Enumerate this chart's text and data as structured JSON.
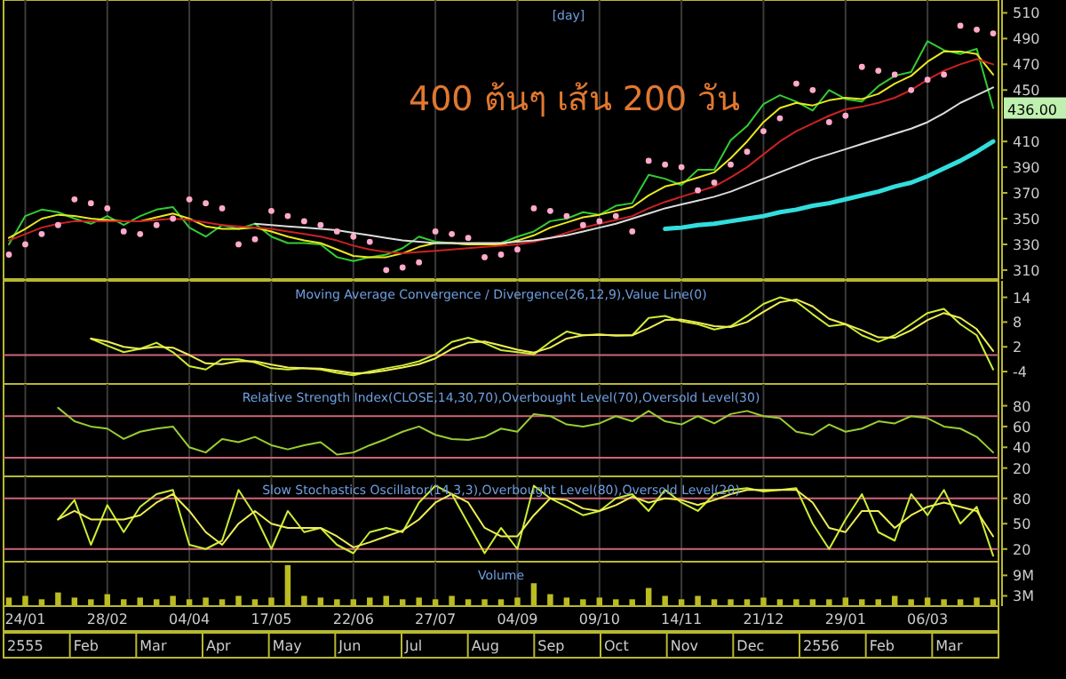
{
  "chart_data": [
    {
      "type": "line",
      "title": "[day]",
      "categories": [
        null,
        null,
        null,
        null,
        null,
        null,
        null,
        null,
        null,
        null,
        null,
        null,
        null,
        null,
        null,
        null,
        null,
        null,
        null,
        null,
        null,
        null,
        null,
        null,
        null,
        null,
        null,
        null,
        null,
        null,
        null,
        null,
        null,
        null,
        null,
        null,
        null,
        null,
        null,
        null,
        null,
        null,
        null,
        null,
        null,
        null,
        null,
        null,
        null,
        null,
        null,
        null,
        null,
        null,
        null,
        null,
        null,
        null,
        null,
        null,
        null
      ],
      "ylim": [
        303,
        520
      ],
      "yticks": [
        310,
        330,
        350,
        370,
        390,
        410,
        450,
        470,
        490,
        510
      ],
      "grid": "x",
      "tick_labels": "y",
      "series": [
        {
          "color": "#33cc33",
          "values": [
            330,
            352,
            357,
            355,
            350,
            346,
            352,
            345,
            352,
            357,
            359,
            343,
            336,
            345,
            342,
            346,
            336,
            331,
            331,
            330,
            320,
            317,
            320,
            322,
            327,
            336,
            332,
            331,
            330,
            330,
            331,
            336,
            340,
            348,
            350,
            355,
            353,
            360,
            362,
            384,
            381,
            376,
            388,
            388,
            411,
            422,
            439,
            446,
            441,
            434,
            450,
            443,
            441,
            453,
            461,
            464,
            488,
            481,
            478,
            482,
            436
          ]
        },
        {
          "color": "#e8e820",
          "values": [
            335,
            342,
            350,
            353,
            352,
            350,
            349,
            348,
            348,
            351,
            354,
            350,
            344,
            342,
            342,
            343,
            340,
            336,
            333,
            331,
            326,
            321,
            320,
            320,
            323,
            328,
            331,
            331,
            330,
            330,
            330,
            333,
            337,
            343,
            347,
            351,
            353,
            356,
            359,
            368,
            375,
            378,
            382,
            386,
            397,
            410,
            425,
            436,
            440,
            438,
            442,
            444,
            443,
            447,
            455,
            461,
            472,
            480,
            480,
            478,
            462
          ]
        },
        {
          "color": "#cc2222",
          "values": [
            333,
            338,
            343,
            346,
            348,
            348,
            348,
            348,
            348,
            349,
            350,
            349,
            347,
            345,
            344,
            343,
            342,
            340,
            338,
            336,
            333,
            329,
            326,
            324,
            323,
            324,
            325,
            326,
            327,
            328,
            329,
            330,
            332,
            335,
            339,
            343,
            346,
            349,
            352,
            358,
            363,
            367,
            371,
            375,
            382,
            390,
            400,
            410,
            418,
            424,
            430,
            435,
            437,
            440,
            444,
            450,
            458,
            465,
            470,
            474,
            470
          ]
        },
        {
          "color": "#dddddd",
          "values": [
            null,
            null,
            null,
            null,
            null,
            null,
            null,
            null,
            null,
            null,
            null,
            null,
            null,
            null,
            null,
            346,
            345,
            344,
            343,
            342,
            341,
            339,
            337,
            335,
            333,
            332,
            331,
            331,
            331,
            331,
            331,
            332,
            333,
            335,
            337,
            340,
            343,
            346,
            350,
            354,
            358,
            361,
            364,
            367,
            371,
            376,
            381,
            386,
            391,
            396,
            400,
            404,
            408,
            412,
            416,
            420,
            425,
            432,
            440,
            446,
            452
          ]
        },
        {
          "color": "#33dddd",
          "values": [
            null,
            null,
            null,
            null,
            null,
            null,
            null,
            null,
            null,
            null,
            null,
            null,
            null,
            null,
            null,
            null,
            null,
            null,
            null,
            null,
            null,
            null,
            null,
            null,
            null,
            null,
            null,
            null,
            null,
            null,
            null,
            null,
            null,
            null,
            null,
            null,
            null,
            null,
            null,
            null,
            342,
            343,
            345,
            346,
            348,
            350,
            352,
            355,
            357,
            360,
            362,
            365,
            368,
            371,
            375,
            378,
            383,
            389,
            395,
            402,
            410
          ]
        },
        {
          "type": "scatter",
          "marker": "circle",
          "color": "#ffaacc",
          "values": [
            322,
            330,
            338,
            345,
            365,
            362,
            358,
            340,
            338,
            345,
            350,
            365,
            362,
            358,
            330,
            334,
            356,
            352,
            348,
            345,
            340,
            336,
            332,
            310,
            312,
            316,
            340,
            338,
            335,
            320,
            322,
            326,
            358,
            356,
            352,
            345,
            348,
            352,
            340,
            395,
            392,
            390,
            372,
            378,
            392,
            402,
            418,
            428,
            455,
            450,
            425,
            430,
            468,
            465,
            462,
            450,
            458,
            462,
            500,
            497,
            494
          ]
        }
      ],
      "annotations": [
        "400 ต้นๆ เส้น 200 วัน",
        {
          "text": "436.00",
          "y": 436
        }
      ]
    },
    {
      "type": "line",
      "title": "Moving Average Convergence / Divergence(26,12,9),Value Line(0)",
      "categories": [
        null,
        null,
        null,
        null,
        null,
        null,
        null,
        null,
        null,
        null,
        null,
        null,
        null,
        null,
        null,
        null,
        null,
        null,
        null,
        null,
        null,
        null,
        null,
        null,
        null,
        null,
        null,
        null,
        null,
        null,
        null,
        null,
        null,
        null,
        null,
        null,
        null,
        null,
        null,
        null,
        null,
        null,
        null,
        null,
        null,
        null,
        null,
        null,
        null,
        null,
        null,
        null,
        null,
        null,
        null,
        null,
        null,
        null,
        null,
        null,
        null
      ],
      "ylim": [
        -7,
        18
      ],
      "yticks": [
        -4,
        2,
        8,
        14
      ],
      "grid": "x",
      "tick_labels": "y",
      "ref_lines": [
        {
          "axis": "y",
          "value": 0,
          "color": "#cc6677"
        }
      ],
      "series": [
        {
          "color": "#ccee33",
          "values": [
            null,
            null,
            null,
            null,
            null,
            4,
            2.3,
            0.7,
            1.5,
            3,
            0.7,
            -2.7,
            -3.5,
            -1,
            -1,
            -1.8,
            -3.2,
            -3.5,
            -3.2,
            -3.5,
            -4.3,
            -4.9,
            -4,
            -3.2,
            -2.5,
            -1.5,
            0.2,
            3.2,
            4.2,
            2.9,
            1.2,
            0.7,
            0.2,
            3.2,
            5.7,
            4.8,
            5,
            4.7,
            4.8,
            9,
            9.5,
            8.2,
            7.5,
            6.2,
            7,
            9.5,
            12.4,
            14,
            13,
            9.9,
            7,
            7.5,
            4.8,
            3.2,
            4.8,
            7.5,
            10.2,
            11.2,
            7.5,
            4.8,
            -3.5
          ]
        },
        {
          "color": "#eeee55",
          "values": [
            null,
            null,
            null,
            null,
            null,
            4,
            3.3,
            2,
            1.5,
            2,
            1.8,
            0,
            -2,
            -2.2,
            -1.5,
            -1.5,
            -2.3,
            -3,
            -3.2,
            -3.3,
            -3.8,
            -4.4,
            -4.3,
            -3.7,
            -3,
            -2.2,
            -0.8,
            1.5,
            3,
            3.3,
            2.3,
            1.3,
            0.6,
            1.8,
            4,
            4.8,
            4.9,
            4.8,
            4.8,
            6.5,
            8.5,
            8.6,
            7.9,
            7,
            6.8,
            8,
            10.5,
            12.8,
            13.5,
            11.8,
            8.8,
            7.5,
            6,
            4.3,
            4.2,
            6,
            8.5,
            10.2,
            9,
            6.3,
            1
          ]
        }
      ]
    },
    {
      "type": "line",
      "title": "Relative Strength Index(CLOSE,14,30,70),Overbought Level(70),Oversold Level(30)",
      "categories": [
        null,
        null,
        null,
        null,
        null,
        null,
        null,
        null,
        null,
        null,
        null,
        null,
        null,
        null,
        null,
        null,
        null,
        null,
        null,
        null,
        null,
        null,
        null,
        null,
        null,
        null,
        null,
        null,
        null,
        null,
        null,
        null,
        null,
        null,
        null,
        null,
        null,
        null,
        null,
        null,
        null,
        null,
        null,
        null,
        null,
        null,
        null,
        null,
        null,
        null,
        null,
        null,
        null,
        null,
        null,
        null,
        null,
        null,
        null,
        null,
        null
      ],
      "ylim": [
        12,
        101
      ],
      "yticks": [
        20,
        40,
        60,
        80
      ],
      "grid": "x",
      "tick_labels": "y",
      "ref_lines": [
        {
          "axis": "y",
          "value": 70,
          "color": "#cc6677"
        },
        {
          "axis": "y",
          "value": 30,
          "color": "#cc6677"
        }
      ],
      "series": [
        {
          "color": "#99cc33",
          "values": [
            null,
            null,
            null,
            78,
            65,
            60,
            58,
            48,
            55,
            58,
            60,
            40,
            35,
            48,
            45,
            50,
            42,
            38,
            42,
            45,
            33,
            35,
            42,
            48,
            55,
            60,
            52,
            48,
            47,
            50,
            58,
            55,
            72,
            70,
            62,
            60,
            63,
            70,
            65,
            75,
            65,
            62,
            70,
            63,
            72,
            75,
            70,
            68,
            55,
            52,
            62,
            55,
            58,
            65,
            63,
            70,
            68,
            60,
            58,
            50,
            35
          ]
        }
      ]
    },
    {
      "type": "line",
      "title": "Slow Stochastics Oscillator(14,3,3),Overbought Level(80),Oversold Level(20)",
      "categories": [
        null,
        null,
        null,
        null,
        null,
        null,
        null,
        null,
        null,
        null,
        null,
        null,
        null,
        null,
        null,
        null,
        null,
        null,
        null,
        null,
        null,
        null,
        null,
        null,
        null,
        null,
        null,
        null,
        null,
        null,
        null,
        null,
        null,
        null,
        null,
        null,
        null,
        null,
        null,
        null,
        null,
        null,
        null,
        null,
        null,
        null,
        null,
        null,
        null,
        null,
        null,
        null,
        null,
        null,
        null,
        null,
        null,
        null,
        null,
        null,
        null
      ],
      "ylim": [
        5,
        106
      ],
      "yticks": [
        20,
        50,
        80
      ],
      "grid": "x",
      "tick_labels": "y",
      "ref_lines": [
        {
          "axis": "y",
          "value": 80,
          "color": "#cc6677"
        },
        {
          "axis": "y",
          "value": 20,
          "color": "#cc6677"
        }
      ],
      "series": [
        {
          "color": "#ccee33",
          "values": [
            null,
            null,
            null,
            55,
            78,
            25,
            72,
            40,
            70,
            85,
            90,
            25,
            20,
            30,
            90,
            60,
            20,
            65,
            40,
            45,
            25,
            15,
            40,
            45,
            40,
            75,
            95,
            85,
            50,
            15,
            45,
            20,
            95,
            80,
            70,
            60,
            65,
            80,
            85,
            65,
            90,
            75,
            65,
            85,
            90,
            92,
            88,
            90,
            92,
            50,
            20,
            55,
            85,
            40,
            30,
            85,
            60,
            90,
            50,
            70,
            12
          ]
        },
        {
          "color": "#eeee55",
          "values": [
            null,
            null,
            null,
            55,
            65,
            55,
            55,
            55,
            60,
            75,
            85,
            65,
            40,
            25,
            50,
            65,
            50,
            45,
            45,
            45,
            35,
            22,
            28,
            35,
            42,
            55,
            75,
            85,
            75,
            45,
            35,
            35,
            60,
            80,
            78,
            68,
            65,
            72,
            82,
            75,
            80,
            78,
            72,
            78,
            85,
            90,
            90,
            90,
            90,
            75,
            45,
            40,
            65,
            65,
            45,
            60,
            70,
            75,
            70,
            65,
            35
          ]
        }
      ]
    },
    {
      "type": "bar",
      "title": "Volume",
      "categories": [
        null,
        "24/01",
        null,
        null,
        null,
        null,
        "28/02",
        null,
        null,
        null,
        null,
        "04/04",
        null,
        null,
        null,
        null,
        "17/05",
        null,
        null,
        null,
        null,
        "22/06",
        null,
        null,
        null,
        null,
        "27/07",
        null,
        null,
        null,
        null,
        "04/09",
        null,
        null,
        null,
        null,
        "09/10",
        null,
        null,
        null,
        null,
        "14/11",
        null,
        null,
        null,
        null,
        "21/12",
        null,
        null,
        null,
        null,
        "29/01",
        null,
        null,
        null,
        null,
        "06/03",
        null,
        null,
        null,
        null
      ],
      "ylim": [
        0,
        13
      ],
      "yticks": [
        {
          "value": 3,
          "label": "3M"
        },
        {
          "value": 9,
          "label": "9M"
        }
      ],
      "grid": "x",
      "series": [
        {
          "color": "#bbbb22",
          "values": [
            2.5,
            3,
            2,
            4,
            2.5,
            2,
            3.5,
            2,
            2.5,
            2,
            3,
            2,
            2.5,
            2,
            3,
            2,
            2.5,
            12,
            3,
            2.5,
            2,
            2,
            2.5,
            3,
            2,
            2.5,
            2,
            3,
            2,
            2,
            2,
            2.5,
            6.7,
            3.5,
            2.5,
            2,
            2.5,
            2,
            2,
            5.3,
            3,
            2,
            3,
            2,
            2,
            2,
            2.5,
            2,
            2,
            2,
            2,
            2.5,
            2,
            2,
            3,
            2,
            2.5,
            2,
            2,
            2.5,
            2
          ]
        }
      ],
      "annotations": [
        "2555",
        "Feb",
        "Mar",
        "Apr",
        "May",
        "Jun",
        "Jul",
        "Aug",
        "Sep",
        "Oct",
        "Nov",
        "Dec",
        "2556",
        "Feb",
        "Mar"
      ]
    }
  ]
}
